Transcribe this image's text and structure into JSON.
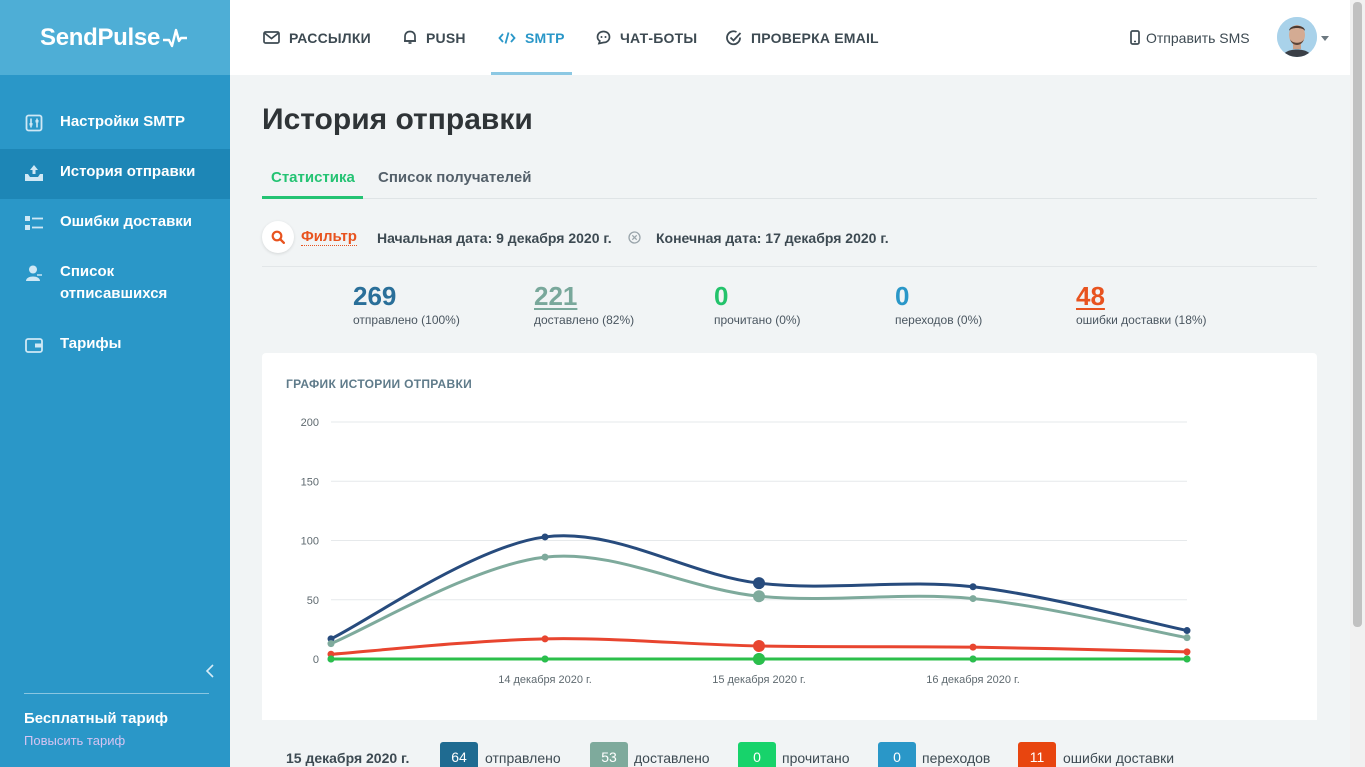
{
  "sidebar": {
    "logo": "SendPulse",
    "items": [
      {
        "label": "Настройки SMTP",
        "icon": "sliders-icon"
      },
      {
        "label": "История отправки",
        "icon": "inbox-upload-icon"
      },
      {
        "label": "Ошибки доставки",
        "icon": "delivery-errors-icon"
      },
      {
        "label": "Список отписавшихся",
        "icon": "user-remove-icon"
      },
      {
        "label": "Тарифы",
        "icon": "wallet-icon"
      }
    ],
    "plan_name": "Бесплатный тариф",
    "upgrade_label": "Повысить тариф"
  },
  "topnav": {
    "tabs": [
      {
        "label": "РАССЫЛКИ",
        "icon": "envelope-icon"
      },
      {
        "label": "PUSH",
        "icon": "bell-icon"
      },
      {
        "label": "SMTP",
        "icon": "code-icon"
      },
      {
        "label": "ЧАТ-БОТЫ",
        "icon": "chat-bot-icon"
      },
      {
        "label": "ПРОВЕРКА EMAIL",
        "icon": "check-circle-icon"
      }
    ],
    "active_tab": "SMTP",
    "sms_label": "Отправить SMS"
  },
  "page": {
    "title": "История отправки",
    "tabs": [
      "Статистика",
      "Список получателей"
    ],
    "active_tab": "Статистика"
  },
  "filter": {
    "label": "Фильтр",
    "start": "Начальная дата: 9 декабря 2020 г.",
    "end": "Конечная дата: 17 декабря 2020 г."
  },
  "stats": [
    {
      "value": "269",
      "label": "отправлено (100%)",
      "color": "#2a6f99"
    },
    {
      "value": "221",
      "label": "доставлено (82%)",
      "color": "#79a89b"
    },
    {
      "value": "0",
      "label": "прочитано (0%)",
      "color": "#23c36b"
    },
    {
      "value": "0",
      "label": "переходов (0%)",
      "color": "#2a97c8"
    },
    {
      "value": "48",
      "label": "ошибки доставки (18%)",
      "color": "#e8531f"
    }
  ],
  "chart_data": {
    "type": "line",
    "title": "ГРАФИК ИСТОРИИ ОТПРАВКИ",
    "x": [
      "",
      "14 декабря 2020 г.",
      "15 декабря 2020 г.",
      "16 декабря 2020 г.",
      ""
    ],
    "x_tick_labels": [
      "14 декабря 2020 г.",
      "15 декабря 2020 г.",
      "16 декабря 2020 г."
    ],
    "ylim": [
      0,
      200
    ],
    "yticks": [
      0,
      50,
      100,
      150,
      200
    ],
    "grid": true,
    "series": [
      {
        "key": "sent",
        "values": [
          17,
          103,
          64,
          61,
          24
        ],
        "color": "#274b7d"
      },
      {
        "key": "delivered",
        "values": [
          13,
          86,
          53,
          51,
          18
        ],
        "color": "#7eaa9c"
      },
      {
        "key": "errors",
        "values": [
          4,
          17,
          11,
          10,
          6
        ],
        "color": "#e8452f"
      },
      {
        "key": "clicks",
        "values": [
          0,
          0,
          0,
          0,
          0
        ],
        "color": "#2a97c8"
      },
      {
        "key": "read",
        "values": [
          0,
          0,
          0,
          0,
          0
        ],
        "color": "#2bbf4a"
      }
    ],
    "highlight_index": 2
  },
  "legend": {
    "date": "15 декабря 2020 г.",
    "items": [
      {
        "value": "64",
        "label": "отправлено",
        "color": "#1f6b91"
      },
      {
        "value": "53",
        "label": "доставлено",
        "color": "#7eaa9c"
      },
      {
        "value": "0",
        "label": "прочитано",
        "color": "#17d36b"
      },
      {
        "value": "0",
        "label": "переходов",
        "color": "#2a97c8"
      },
      {
        "value": "11",
        "label": "ошибки доставки",
        "color": "#e8450f"
      }
    ]
  }
}
